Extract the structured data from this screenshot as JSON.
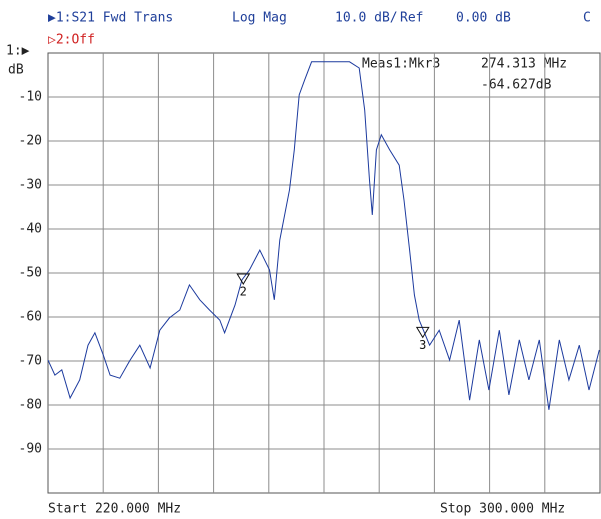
{
  "header": {
    "trace1": "▶1:S21 Fwd Trans",
    "format": "Log Mag",
    "scale": "10.0 dB/",
    "ref_label": "Ref",
    "ref_value": "0.00 dB",
    "channel": "C",
    "trace2": "▷2:Off"
  },
  "chart_data": {
    "type": "line",
    "ref_marker": "1:▶",
    "ylabel": "dB",
    "xlim": [
      220,
      300
    ],
    "xgrid": [
      228,
      236,
      244,
      252,
      260,
      268,
      276,
      284,
      292
    ],
    "ylim": [
      -100,
      0
    ],
    "yticks": [
      -90,
      -80,
      -70,
      -60,
      -50,
      -40,
      -30,
      -20,
      -10
    ],
    "grid": true,
    "x": [
      220.0,
      221.0,
      222.0,
      223.2,
      224.6,
      225.8,
      226.8,
      228.0,
      229.0,
      230.4,
      231.9,
      233.3,
      234.8,
      236.2,
      237.6,
      239.1,
      240.5,
      242.0,
      243.4,
      244.9,
      245.6,
      247.1,
      248.1,
      249.2,
      250.7,
      252.1,
      252.8,
      253.6,
      255.0,
      255.7,
      256.4,
      257.2,
      258.2,
      260.8,
      263.7,
      265.1,
      265.9,
      266.6,
      267.0,
      267.6,
      268.3,
      269.5,
      270.9,
      271.6,
      272.4,
      273.1,
      273.8,
      275.3,
      276.7,
      278.2,
      279.6,
      281.1,
      282.5,
      283.9,
      285.4,
      286.8,
      288.3,
      289.7,
      291.2,
      292.6,
      294.1,
      295.5,
      297.0,
      298.4,
      299.9
    ],
    "series": [
      {
        "color": "#1c3a9e",
        "values": [
          -69.8,
          -73.2,
          -72.0,
          -78.4,
          -74.3,
          -66.4,
          -63.6,
          -68.6,
          -73.2,
          -73.9,
          -69.8,
          -66.4,
          -71.6,
          -63.0,
          -60.2,
          -58.4,
          -52.7,
          -56.1,
          -58.4,
          -60.7,
          -63.6,
          -57.3,
          -51.6,
          -49.3,
          -44.8,
          -49.3,
          -56.1,
          -42.5,
          -31.1,
          -22.0,
          -9.5,
          -6.1,
          -2.0,
          -2.0,
          -2.0,
          -3.4,
          -13.0,
          -28.9,
          -36.8,
          -22.0,
          -18.6,
          -22.0,
          -25.5,
          -33.4,
          -44.8,
          -55.0,
          -60.7,
          -66.4,
          -63.0,
          -69.8,
          -60.7,
          -78.9,
          -65.2,
          -76.6,
          -63.0,
          -77.7,
          -65.2,
          -74.3,
          -65.2,
          -81.1,
          -65.2,
          -74.3,
          -66.4,
          -76.6,
          -67.5
        ]
      }
    ],
    "markers": [
      {
        "label": "2",
        "x": 248.3,
        "value": -52.5
      },
      {
        "label": "3",
        "x": 274.313,
        "value": -64.627
      }
    ],
    "readout": {
      "name": "Meas1:Mkr3",
      "freq": "274.313 MHz",
      "level": "-64.627dB"
    },
    "start": "Start 220.000 MHz",
    "stop": "Stop 300.000 MHz"
  }
}
